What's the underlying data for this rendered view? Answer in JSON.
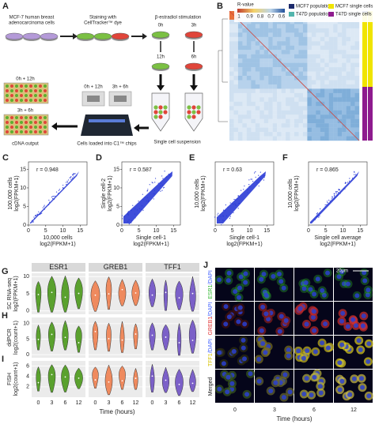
{
  "panel_a": {
    "letter": "A",
    "source": [
      "MCF-7 human breast",
      "adenocarcinoma cells"
    ],
    "staining": [
      "Staining with",
      "CellTracker™ dye"
    ],
    "stimulation": "β-estradiol stimulation",
    "times": [
      "0h",
      "3h",
      "12h",
      "6h"
    ],
    "output_labels": [
      "0h + 12h",
      "3h + 6h"
    ],
    "chip_labels": [
      "0h + 12h",
      "3h + 6h"
    ],
    "cdna": "cDNA output",
    "chips": "Cells loaded into C1™ chips",
    "suspension": "Single cell suspension"
  },
  "panel_b": {
    "letter": "B",
    "colorbar_title": "R-value",
    "colorbar_ticks": [
      1,
      0.9,
      0.8,
      0.7,
      0.6
    ],
    "legend": [
      {
        "name": "MCF7 population",
        "color": "#1c2a6b"
      },
      {
        "name": "T47D population",
        "color": "#52b5ad"
      },
      {
        "name": "MCF7 single cells",
        "color": "#f0e400"
      },
      {
        "name": "T47D single cells",
        "color": "#8e1b8e"
      }
    ]
  },
  "scatter_panels": [
    {
      "letter": "C",
      "r": "r = 0.948",
      "y_label": [
        "100,000 cells",
        "log2(FPKM+1)"
      ],
      "x_label": [
        "10,000 cells",
        "log2(FPKM+1)"
      ],
      "xlim": [
        0,
        17
      ],
      "xticks": [
        0,
        5,
        10,
        15
      ],
      "ylim": [
        0,
        17
      ],
      "yticks": [
        0,
        5,
        10,
        15
      ]
    },
    {
      "letter": "D",
      "r": "r = 0.587",
      "y_label": [
        "Single cell-2",
        "log2(FPKM+1)"
      ],
      "x_label": [
        "Single cell-1",
        "log2(FPKM+1)"
      ],
      "xlim": [
        0,
        17
      ],
      "xticks": [
        0,
        5,
        10,
        15
      ],
      "ylim": [
        0,
        17
      ],
      "yticks": [
        0,
        5,
        10,
        15
      ]
    },
    {
      "letter": "E",
      "r": "r = 0.63",
      "y_label": [
        "10,000 cells",
        "log2(FPKM+1)"
      ],
      "x_label": [
        "Single cell-1",
        "log2(FPKM+1)"
      ],
      "xlim": [
        0,
        17
      ],
      "xticks": [
        0,
        5,
        10,
        15
      ]
    },
    {
      "letter": "F",
      "r": "r = 0.865",
      "y_label": [
        "10,000 cells",
        "log2(FPKM+1)"
      ],
      "x_label": [
        "Single cell average",
        "log2(FPKM+1)"
      ],
      "xlim": [
        0,
        17
      ],
      "xticks": [
        0,
        5,
        10,
        15
      ]
    }
  ],
  "violin": {
    "genes": [
      "ESR1",
      "GREB1",
      "TFF1"
    ],
    "colors": [
      "#5aa12e",
      "#ef8a5e",
      "#7b60c8"
    ],
    "rows": [
      {
        "letter": "G",
        "label": [
          "SC RNA-seq",
          "log2(FPKM+1)"
        ],
        "ylim": [
          -1,
          11
        ],
        "yticks": [
          0,
          5,
          10
        ]
      },
      {
        "letter": "H",
        "label": [
          "ddPCR",
          "log2(count+1)"
        ],
        "ylim": [
          -1,
          12
        ],
        "yticks": [
          0,
          5,
          10
        ]
      },
      {
        "letter": "I",
        "label": [
          "FISH",
          "log2(count+1)"
        ],
        "ylim": [
          0,
          7
        ],
        "yticks": [
          2,
          4,
          6
        ]
      }
    ],
    "times": [
      0,
      3,
      6,
      12
    ],
    "x_label": "Time (hours)"
  },
  "panel_j": {
    "letter": "J",
    "rows": [
      [
        {
          "text": "ESR1",
          "color": "#2fb62f"
        },
        {
          "text": "/DAPI",
          "color": "#3f5fff"
        }
      ],
      [
        {
          "text": "GREB1",
          "color": "#e03030"
        },
        {
          "text": "/DAPI",
          "color": "#3f5fff"
        }
      ],
      [
        {
          "text": "TFF1",
          "color": "#d6c200"
        },
        {
          "text": "/DAPI",
          "color": "#3f5fff"
        }
      ],
      [
        {
          "text": "Merged",
          "color": "#222222"
        }
      ]
    ],
    "scale": "20μm",
    "times": [
      0,
      3,
      6,
      12
    ],
    "x_label": "Time (hours)"
  }
}
